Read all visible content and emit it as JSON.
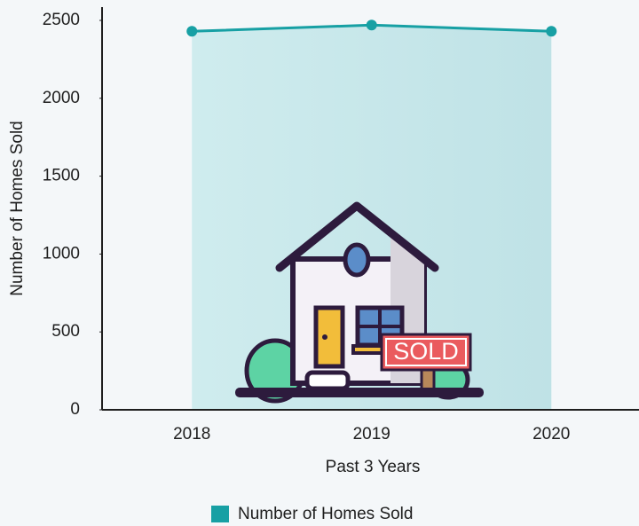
{
  "chart_data": {
    "type": "area",
    "categories": [
      "2018",
      "2019",
      "2020"
    ],
    "series": [
      {
        "name": "Number of Homes Sold",
        "color": "#17a0a4",
        "values": [
          2430,
          2470,
          2430
        ]
      }
    ],
    "ylim": [
      0,
      2600
    ],
    "yticks": [
      0,
      500,
      1000,
      1500,
      2000,
      2500
    ],
    "x_label": "Past 3 Years",
    "y_label": "Number of Homes Sold",
    "annotation": "SOLD"
  }
}
